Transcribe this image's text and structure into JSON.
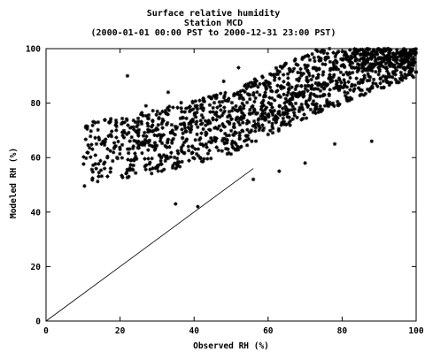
{
  "chart_data": {
    "type": "scatter",
    "title": "Surface relative humidity",
    "subtitle": "Station MCD",
    "period": "(2000-01-01 00:00 PST to 2000-12-31 23:00 PST)",
    "xlabel": "Observed RH (%)",
    "ylabel": "Modeled RH (%)",
    "xlim": [
      0,
      100
    ],
    "ylim": [
      0,
      100
    ],
    "xticks": [
      "0",
      "20",
      "40",
      "60",
      "80",
      "100"
    ],
    "yticks": [
      "0",
      "20",
      "40",
      "60",
      "80",
      "100"
    ],
    "grid": false,
    "legend": "none",
    "marker": "*",
    "reference_line": {
      "x": [
        0,
        56
      ],
      "y": [
        0,
        56
      ]
    },
    "point_cloud": {
      "x_range": [
        10,
        100
      ],
      "approx_count": 1500,
      "model_y_floor_at_x": {
        "x": [
          10,
          30,
          50,
          70,
          90,
          100
        ],
        "y": [
          45,
          50,
          57,
          70,
          82,
          88
        ]
      },
      "model_y_ceiling": 100,
      "outliers": [
        {
          "x": 22,
          "y": 90
        },
        {
          "x": 27,
          "y": 79
        },
        {
          "x": 33,
          "y": 84
        },
        {
          "x": 35,
          "y": 43
        },
        {
          "x": 41,
          "y": 42
        },
        {
          "x": 48,
          "y": 88
        },
        {
          "x": 52,
          "y": 93
        },
        {
          "x": 56,
          "y": 52
        },
        {
          "x": 63,
          "y": 55
        },
        {
          "x": 70,
          "y": 58
        },
        {
          "x": 78,
          "y": 65
        },
        {
          "x": 88,
          "y": 66
        }
      ]
    }
  }
}
